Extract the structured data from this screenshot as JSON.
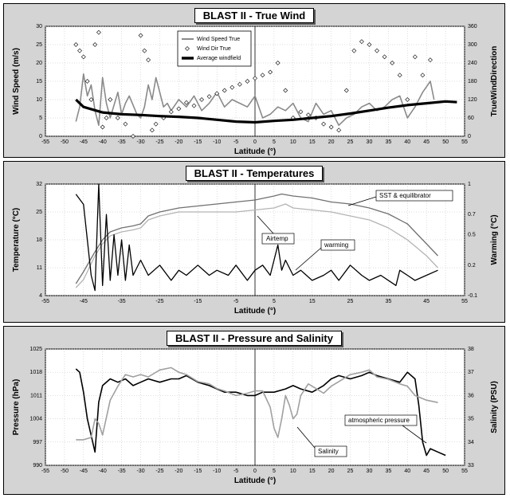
{
  "chart_data": [
    {
      "type": "line",
      "title": "BLAST II - True Wind",
      "xlabel": "Latitude (°)",
      "ylabel": "Wind Speed (m/s)",
      "y2label": "TrueWindDirection",
      "xlim": [
        -55,
        55
      ],
      "ylim": [
        0,
        30
      ],
      "y2lim": [
        0,
        360
      ],
      "xticks": [
        -55,
        -50,
        -45,
        -40,
        -35,
        -30,
        -25,
        -20,
        -15,
        -10,
        -5,
        0,
        5,
        10,
        15,
        20,
        25,
        30,
        35,
        40,
        45,
        50,
        55
      ],
      "yticks": [
        0,
        5,
        10,
        15,
        20,
        25,
        30
      ],
      "y2ticks": [
        0,
        60,
        120,
        180,
        240,
        300,
        360
      ],
      "legend_position": "top-center",
      "series": [
        {
          "name": "Wind Speed True",
          "axis": "left",
          "color": "#8a8a8a",
          "x": [
            -47,
            -46,
            -45,
            -44,
            -43,
            -42,
            -41,
            -40,
            -39,
            -38,
            -36,
            -35,
            -34,
            -33,
            -31,
            -30,
            -29,
            -28,
            -27,
            -26,
            -25,
            -24,
            -23,
            -22,
            -20,
            -18,
            -16,
            -14,
            -12,
            -10,
            -8,
            -6,
            -4,
            -2,
            0,
            2,
            4,
            6,
            8,
            10,
            12,
            14,
            16,
            18,
            20,
            22,
            24,
            26,
            28,
            30,
            32,
            34,
            36,
            38,
            40,
            42,
            44,
            46,
            47
          ],
          "y": [
            4,
            8,
            17,
            11,
            14,
            7,
            3,
            16,
            9,
            5,
            12,
            6,
            9,
            11,
            6,
            5,
            8,
            14,
            10,
            16,
            12,
            8,
            9,
            7,
            10,
            8,
            11,
            7,
            9,
            12,
            8,
            10,
            9,
            8,
            11,
            5,
            6,
            8,
            7,
            9,
            5,
            4,
            9,
            6,
            7,
            3,
            5,
            6,
            8,
            9,
            7,
            8,
            10,
            11,
            5,
            8,
            12,
            15,
            10
          ]
        },
        {
          "name": "Wind Dir True",
          "axis": "right",
          "color": "#000000",
          "x": [
            -47,
            -46,
            -45,
            -44,
            -43,
            -42,
            -41,
            -40,
            -39,
            -38,
            -36,
            -34,
            -32,
            -30,
            -29,
            -28,
            -27,
            -26,
            -24,
            -22,
            -20,
            -18,
            -16,
            -14,
            -12,
            -10,
            -8,
            -6,
            -4,
            -2,
            0,
            2,
            4,
            6,
            8,
            10,
            12,
            14,
            16,
            18,
            20,
            22,
            24,
            26,
            28,
            30,
            32,
            34,
            36,
            38,
            40,
            42,
            44,
            46
          ],
          "y": [
            300,
            280,
            260,
            180,
            120,
            300,
            340,
            30,
            60,
            120,
            60,
            40,
            0,
            330,
            280,
            250,
            20,
            40,
            60,
            80,
            90,
            110,
            100,
            120,
            130,
            140,
            150,
            160,
            170,
            180,
            190,
            200,
            210,
            240,
            150,
            60,
            80,
            70,
            60,
            40,
            30,
            20,
            150,
            280,
            310,
            300,
            280,
            260,
            240,
            200,
            120,
            260,
            200,
            250
          ]
        },
        {
          "name": "Average windfield",
          "axis": "left",
          "color": "#000000",
          "x": [
            -47,
            -45,
            -40,
            -35,
            -30,
            -25,
            -20,
            -15,
            -10,
            -5,
            0,
            5,
            10,
            15,
            20,
            25,
            30,
            35,
            40,
            45,
            50,
            53
          ],
          "y": [
            10,
            8,
            6.5,
            6,
            5.8,
            5.5,
            5.3,
            5,
            4.5,
            4,
            3.8,
            4.2,
            4.5,
            5,
            5.5,
            6.2,
            7,
            7.8,
            8.5,
            9,
            9.5,
            9.3
          ]
        }
      ]
    },
    {
      "type": "line",
      "title": "BLAST II - Temperatures",
      "xlabel": "Latitude (°)",
      "ylabel": "Temperature (°C)",
      "y2label": "Warming (°C)",
      "xlim": [
        -55,
        55
      ],
      "ylim": [
        4,
        32
      ],
      "y2lim": [
        -0.1,
        1.0
      ],
      "xticks": [
        -55,
        -45,
        -35,
        -25,
        -15,
        -5,
        5,
        15,
        25,
        35,
        45,
        55
      ],
      "yticks": [
        4,
        11,
        18,
        25,
        32
      ],
      "y2ticks": [
        -0.1,
        0.2,
        0.5,
        0.7,
        1.0
      ],
      "annotations": [
        "SST & equilibrator",
        "Airtemp",
        "warming"
      ],
      "series": [
        {
          "name": "SST & equilibrator",
          "axis": "left",
          "color": "#707070",
          "x": [
            -47,
            -45,
            -42,
            -40,
            -38,
            -35,
            -32,
            -30,
            -28,
            -25,
            -20,
            -15,
            -10,
            -5,
            0,
            5,
            7,
            10,
            15,
            20,
            25,
            30,
            35,
            40,
            45,
            48
          ],
          "y": [
            7,
            10,
            15,
            18,
            20,
            21,
            21.5,
            22,
            24,
            25,
            26,
            26.5,
            27,
            27.5,
            28,
            29,
            29.5,
            29,
            28.5,
            27.5,
            27,
            26,
            24.5,
            22,
            17,
            14
          ]
        },
        {
          "name": "Airtemp",
          "axis": "left",
          "color": "#b4b4b4",
          "x": [
            -47,
            -45,
            -42,
            -40,
            -38,
            -35,
            -32,
            -30,
            -28,
            -25,
            -20,
            -15,
            -10,
            -5,
            0,
            5,
            8,
            10,
            15,
            20,
            25,
            30,
            35,
            40,
            45,
            48
          ],
          "y": [
            6,
            8,
            14,
            17,
            19,
            20,
            20.5,
            21,
            23,
            24,
            25,
            25,
            25,
            25,
            25.5,
            26,
            27,
            26,
            25.5,
            25,
            24,
            23,
            21,
            18,
            14,
            11
          ]
        },
        {
          "name": "warming",
          "axis": "right",
          "color": "#000000",
          "x": [
            -47,
            -45,
            -43,
            -42,
            -41,
            -40,
            -39,
            -38,
            -37,
            -36,
            -35,
            -34,
            -33,
            -32,
            -30,
            -28,
            -25,
            -22,
            -20,
            -18,
            -15,
            -12,
            -10,
            -7,
            -5,
            -2,
            0,
            2,
            4,
            6,
            7,
            8,
            10,
            12,
            15,
            18,
            20,
            22,
            25,
            28,
            30,
            33,
            35,
            37,
            38,
            40,
            42,
            45,
            48
          ],
          "y": [
            0.9,
            0.8,
            0.1,
            -0.05,
            1.0,
            0.0,
            0.7,
            0.05,
            0.5,
            0.1,
            0.45,
            0.05,
            0.4,
            0.1,
            0.25,
            0.1,
            0.2,
            0.05,
            0.15,
            0.1,
            0.2,
            0.1,
            0.15,
            0.1,
            0.2,
            0.05,
            0.15,
            0.2,
            0.1,
            0.4,
            0.15,
            0.25,
            0.1,
            0.15,
            0.05,
            0.1,
            0.15,
            0.05,
            0.2,
            0.1,
            0.05,
            0.1,
            0.05,
            0.0,
            0.15,
            0.1,
            0.05,
            0.1,
            0.15
          ]
        }
      ]
    },
    {
      "type": "line",
      "title": "BLAST II - Pressure and Salinity",
      "xlabel": "Latitude (°)",
      "ylabel": "Pressure (hPa)",
      "y2label": "Salinity (PSU)",
      "xlim": [
        -55,
        55
      ],
      "ylim": [
        990,
        1025
      ],
      "y2lim": [
        33,
        38
      ],
      "xticks": [
        -55,
        -50,
        -45,
        -40,
        -35,
        -30,
        -25,
        -20,
        -15,
        -10,
        -5,
        0,
        5,
        10,
        15,
        20,
        25,
        30,
        35,
        40,
        45,
        50,
        55
      ],
      "yticks": [
        990,
        997,
        1004,
        1011,
        1018,
        1025
      ],
      "y2ticks": [
        33,
        34,
        35,
        36,
        37,
        38
      ],
      "annotations": [
        "atmospheric pressure",
        "Salinity"
      ],
      "series": [
        {
          "name": "atmospheric pressure",
          "axis": "left",
          "color": "#000000",
          "x": [
            -47,
            -46,
            -45,
            -44,
            -43,
            -42,
            -41,
            -40,
            -38,
            -36,
            -34,
            -32,
            -30,
            -28,
            -25,
            -22,
            -20,
            -18,
            -15,
            -12,
            -10,
            -8,
            -5,
            -2,
            0,
            2,
            5,
            8,
            10,
            12,
            15,
            18,
            20,
            22,
            25,
            28,
            30,
            32,
            35,
            38,
            40,
            42,
            43,
            44,
            45,
            46,
            48,
            50
          ],
          "y": [
            1019,
            1018,
            1012,
            1004,
            999,
            994,
            1009,
            1014,
            1016,
            1015,
            1016,
            1014,
            1015,
            1016,
            1015,
            1016,
            1016,
            1017,
            1015,
            1014,
            1013,
            1012,
            1012,
            1011,
            1011,
            1012,
            1012,
            1013,
            1014,
            1013,
            1012,
            1014,
            1016,
            1017,
            1016,
            1017,
            1018,
            1017,
            1016,
            1015,
            1018,
            1016,
            1008,
            997,
            993,
            995,
            994,
            993
          ]
        },
        {
          "name": "Salinity",
          "axis": "right",
          "color": "#a0a0a0",
          "x": [
            -47,
            -45,
            -43,
            -42,
            -41,
            -40,
            -38,
            -36,
            -34,
            -32,
            -30,
            -28,
            -25,
            -22,
            -20,
            -18,
            -15,
            -12,
            -10,
            -8,
            -5,
            -2,
            0,
            2,
            4,
            5,
            6,
            7,
            8,
            9,
            10,
            11,
            12,
            14,
            16,
            18,
            20,
            22,
            25,
            28,
            30,
            32,
            35,
            38,
            40,
            42,
            45,
            48
          ],
          "y": [
            34.1,
            34.1,
            34.2,
            35.0,
            34.8,
            34.3,
            35.8,
            36.4,
            36.9,
            36.8,
            36.9,
            36.8,
            37.1,
            37.2,
            37.0,
            36.9,
            36.6,
            36.5,
            36.3,
            36.2,
            36.0,
            36.1,
            36.2,
            36.2,
            35.5,
            34.6,
            34.2,
            35.0,
            36.0,
            35.6,
            35.0,
            35.2,
            36.0,
            36.5,
            36.3,
            36.1,
            36.4,
            36.6,
            36.9,
            37.0,
            37.1,
            36.8,
            36.7,
            36.5,
            36.4,
            36.0,
            35.8,
            35.7
          ]
        }
      ]
    }
  ]
}
